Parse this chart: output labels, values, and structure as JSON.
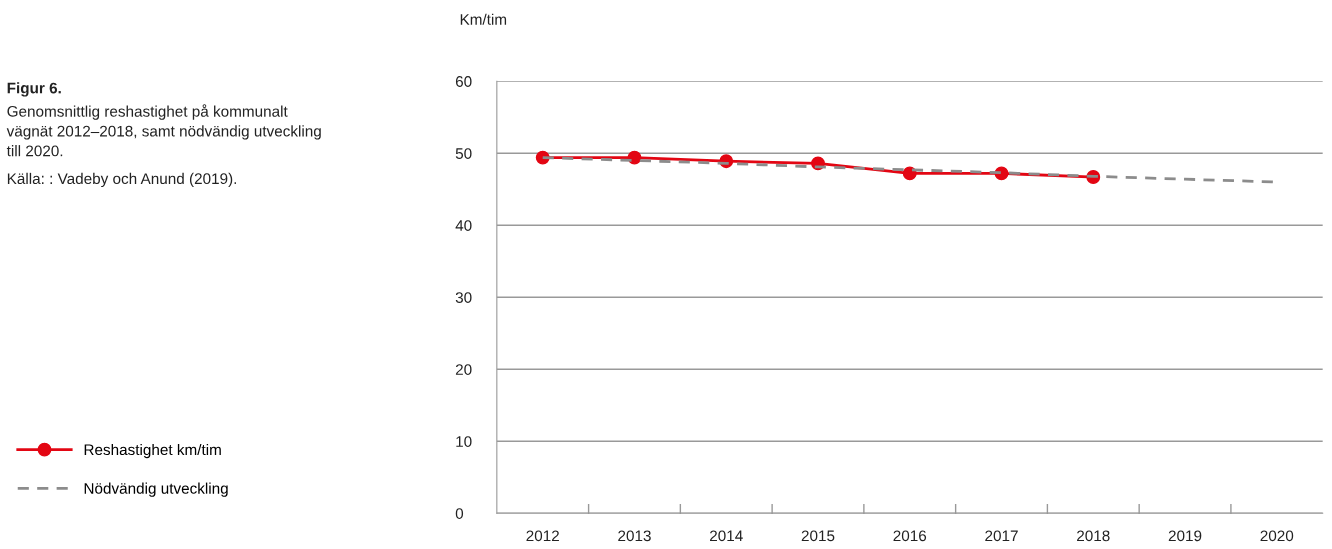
{
  "chart_data": {
    "type": "line",
    "title": "Figur 6.",
    "subtitle": "Genomsnittlig reshastighet på kommunalt vägnät 2012–2018, samt nödvändig utveckling till 2020.",
    "annotations": [
      "Källa: : Vadeby och Anund (2019)."
    ],
    "ylabel": "Km/tim",
    "categories": [
      "2012",
      "2013",
      "2014",
      "2015",
      "2016",
      "2017",
      "2018",
      "2019",
      "2020"
    ],
    "series": [
      {
        "name": "Reshastighet km/tim",
        "color": "#e30613",
        "values": [
          49.4,
          49.4,
          48.9,
          48.6,
          47.2,
          47.2,
          46.7,
          null,
          null
        ],
        "marker": "circle",
        "line_style": "solid"
      },
      {
        "name": "Nödvändig utveckling",
        "color": "#8c8c8c",
        "values": [
          49.4,
          49.0,
          48.6,
          48.1,
          47.7,
          47.3,
          46.8,
          46.4,
          46.0
        ],
        "marker": "none",
        "line_style": "dashed"
      }
    ],
    "ylim": [
      0,
      60
    ],
    "yticks": [
      0,
      10,
      20,
      30,
      40,
      50,
      60
    ],
    "grid": "y",
    "legend": "bottom left"
  }
}
